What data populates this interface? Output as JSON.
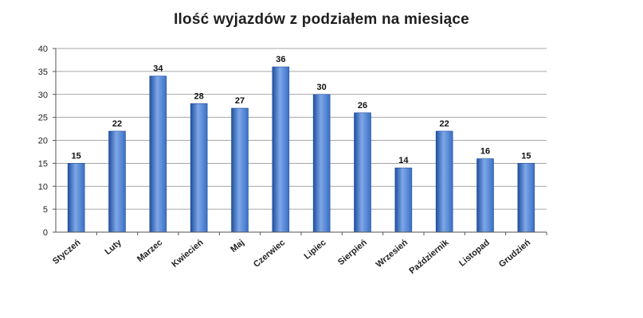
{
  "chart_data": {
    "type": "bar",
    "title": "Ilość wyjazdów z podziałem na miesiące",
    "xlabel": "",
    "ylabel": "",
    "categories": [
      "Styczeń",
      "Luty",
      "Marzec",
      "Kwiecień",
      "Maj",
      "Czerwiec",
      "Lipiec",
      "Sierpień",
      "Wrzesień",
      "Październik",
      "Listopad",
      "Grudzień"
    ],
    "values": [
      15,
      22,
      34,
      28,
      27,
      36,
      30,
      26,
      14,
      22,
      16,
      15
    ],
    "ylim": [
      0,
      40
    ],
    "yticks": [
      0,
      5,
      10,
      15,
      20,
      25,
      30,
      35,
      40
    ],
    "grid": true,
    "legend": "none",
    "bar_color": "#3a6fc4",
    "bar_color_light": "#7ea7e8",
    "bar_color_dark": "#1f4f9e"
  }
}
